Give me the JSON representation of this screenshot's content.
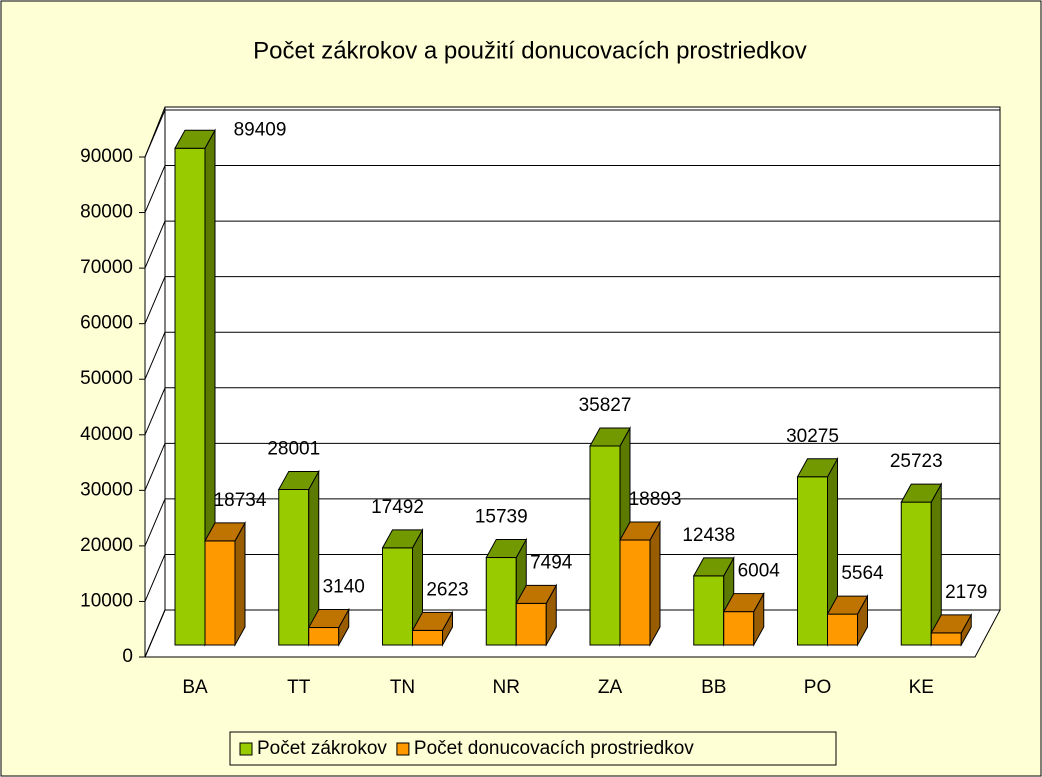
{
  "chart_data": {
    "type": "bar3d",
    "title": "Počet zákrokov a použití donucovacích prostriedkov",
    "categories": [
      "BA",
      "TT",
      "TN",
      "NR",
      "ZA",
      "BB",
      "PO",
      "KE"
    ],
    "series": [
      {
        "name": "Počet zákrokov",
        "color": "#99cc00",
        "values": [
          89409,
          28001,
          17492,
          15739,
          35827,
          12438,
          30275,
          25723
        ]
      },
      {
        "name": "Počet donucovacích prostriedkov",
        "color": "#ff9900",
        "values": [
          18734,
          3140,
          2623,
          7494,
          18893,
          6004,
          5564,
          2179
        ]
      }
    ],
    "ylim": [
      0,
      90000
    ],
    "yticks": [
      0,
      10000,
      20000,
      30000,
      40000,
      50000,
      60000,
      70000,
      80000,
      90000
    ],
    "grid": true,
    "legend": "bottom"
  }
}
